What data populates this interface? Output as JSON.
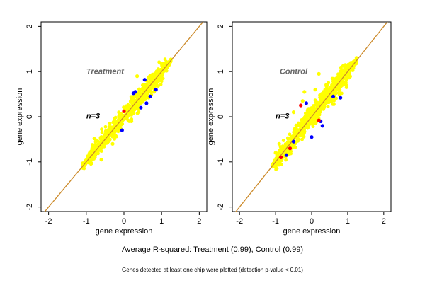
{
  "colors": {
    "background": "#ffffff",
    "identity_line": "#cc8a2a",
    "point_main": "#ffff00",
    "point_outlier_blue": "#0000ff",
    "point_outlier_red": "#ff0000",
    "panel_title": "#666666"
  },
  "footer": {
    "summary": "Average R-squared: Treatment (0.99), Control (0.99)",
    "note": "Genes detected at least one chip were plotted (detection p-value < 0.01)"
  },
  "chart_data": [
    {
      "type": "scatter",
      "title": "Treatment",
      "annotation": "n=3",
      "xlabel": "gene expression",
      "ylabel": "gene expression",
      "xlim": [
        -2.2,
        2.2
      ],
      "ylim": [
        -2.1,
        2.1
      ],
      "x_ticks": [
        "-2",
        "-1",
        "0",
        "1",
        "2"
      ],
      "y_ticks": [
        "-2",
        "-1",
        "0",
        "1",
        "2"
      ],
      "reference_line": "y = x",
      "grid": false,
      "point_cloud": {
        "x_range": [
          -1.1,
          1.25
        ],
        "spread": 0.1
      },
      "series": [
        {
          "color": "#ffff00",
          "points": [
            [
              0.5,
              0.7
            ],
            [
              -0.3,
              -0.6
            ],
            [
              0.2,
              -0.1
            ],
            [
              0.8,
              0.55
            ],
            [
              0.35,
              0.9
            ],
            [
              -0.6,
              -0.95
            ]
          ]
        },
        {
          "color": "#0000ff",
          "points": [
            [
              0.55,
              0.82
            ],
            [
              0.25,
              0.52
            ],
            [
              0.7,
              0.45
            ],
            [
              0.6,
              0.3
            ],
            [
              -0.05,
              -0.3
            ],
            [
              0.3,
              0.55
            ],
            [
              0.85,
              0.6
            ],
            [
              0.45,
              0.2
            ]
          ]
        },
        {
          "color": "#ff0000",
          "points": [
            [
              0.0,
              0.12
            ]
          ]
        }
      ]
    },
    {
      "type": "scatter",
      "title": "Control",
      "annotation": "n=3",
      "xlabel": "gene expression",
      "ylabel": "gene expression",
      "xlim": [
        -2.2,
        2.2
      ],
      "ylim": [
        -2.1,
        2.1
      ],
      "x_ticks": [
        "-2",
        "-1",
        "0",
        "1",
        "2"
      ],
      "y_ticks": [
        "-2",
        "-1",
        "0",
        "1",
        "2"
      ],
      "reference_line": "y = x",
      "grid": false,
      "point_cloud": {
        "x_range": [
          -1.1,
          1.25
        ],
        "spread": 0.12
      },
      "series": [
        {
          "color": "#ffff00",
          "points": [
            [
              0.2,
              0.95
            ],
            [
              -0.2,
              0.55
            ],
            [
              -0.25,
              0.35
            ],
            [
              -0.9,
              -0.6
            ],
            [
              0.1,
              0.6
            ],
            [
              -0.5,
              0.1
            ],
            [
              -1.0,
              -0.8
            ]
          ]
        },
        {
          "color": "#0000ff",
          "points": [
            [
              0.6,
              0.45
            ],
            [
              0.8,
              0.42
            ],
            [
              -0.15,
              0.3
            ],
            [
              0.0,
              -0.45
            ],
            [
              0.25,
              -0.1
            ],
            [
              -0.5,
              -0.55
            ],
            [
              0.3,
              -0.2
            ],
            [
              -0.7,
              -0.85
            ]
          ]
        },
        {
          "color": "#ff0000",
          "points": [
            [
              -0.3,
              0.25
            ],
            [
              -0.6,
              -0.7
            ],
            [
              0.2,
              -0.08
            ],
            [
              -0.85,
              -0.9
            ]
          ]
        }
      ]
    }
  ]
}
